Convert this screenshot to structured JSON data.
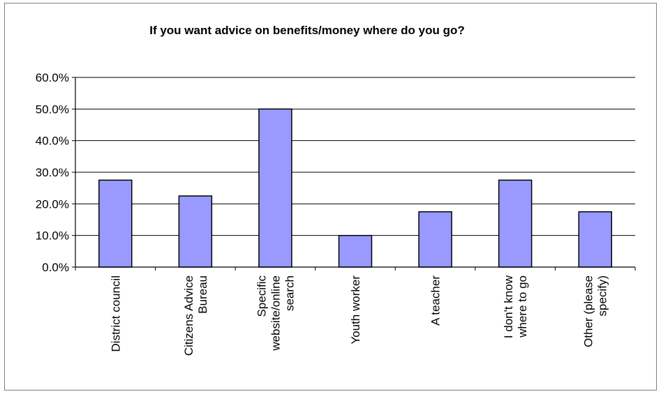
{
  "chart_data": {
    "type": "bar",
    "title": "If you want advice on benefits/money where do you go?",
    "categories": [
      [
        "District council"
      ],
      [
        "Citizens Advice",
        "Bureau"
      ],
      [
        "Specific",
        "website/online",
        "search"
      ],
      [
        "Youth worker"
      ],
      [
        "A teacher"
      ],
      [
        "I don't know",
        "where to go"
      ],
      [
        "Other (please",
        "specify)"
      ]
    ],
    "values": [
      27.5,
      22.5,
      50.0,
      10.0,
      17.5,
      27.5,
      17.5
    ],
    "ylim": [
      0,
      60
    ],
    "yticks": [
      0,
      10,
      20,
      30,
      40,
      50,
      60
    ],
    "ytick_labels": [
      "0.0%",
      "10.0%",
      "20.0%",
      "30.0%",
      "40.0%",
      "50.0%",
      "60.0%"
    ],
    "xlabel": "",
    "ylabel": "",
    "grid": true,
    "legend": "none",
    "colors": {
      "bar_fill": "#9999FF",
      "bar_stroke": "#000000",
      "grid": "#000000"
    }
  }
}
